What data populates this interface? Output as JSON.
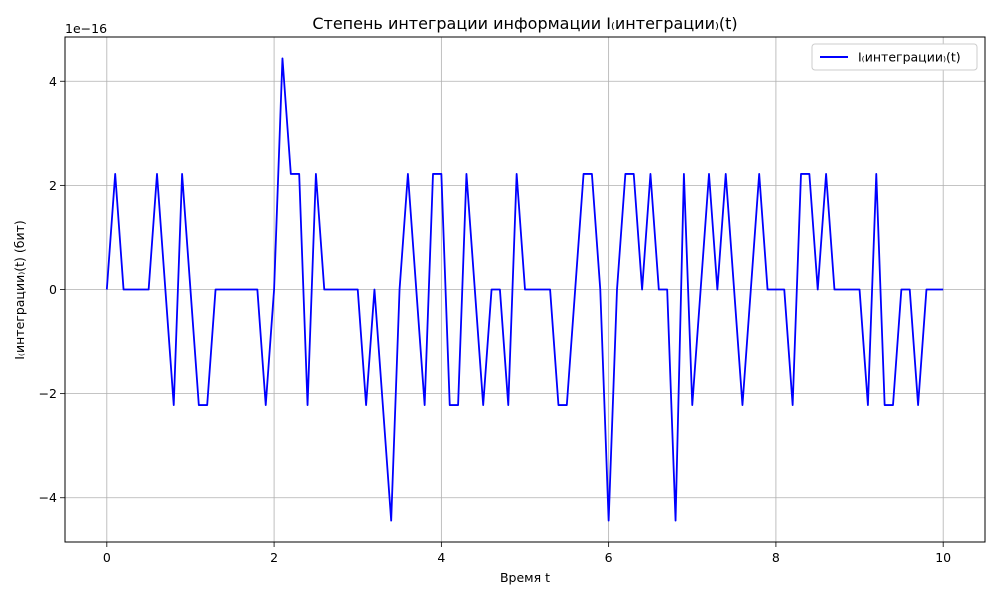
{
  "chart_data": {
    "type": "line",
    "title": "Степень интеграции информации I₍интеграции₎(t)",
    "xlabel": "Время t",
    "ylabel": "I₍интеграции₎(t) (бит)",
    "y_scale_label": "1e−16",
    "xlim": [
      -0.5,
      10.5
    ],
    "ylim": [
      -4.85,
      4.85
    ],
    "x_ticks": [
      0,
      2,
      4,
      6,
      8,
      10
    ],
    "y_ticks": [
      -4,
      -2,
      0,
      2,
      4
    ],
    "x_tick_labels": [
      "0",
      "2",
      "4",
      "6",
      "8",
      "10"
    ],
    "y_tick_labels": [
      "−4",
      "−2",
      "0",
      "2",
      "4"
    ],
    "grid": true,
    "legend_position": "top-right",
    "series": [
      {
        "name": "I₍интеграции₎(t)",
        "color": "#0000ff",
        "x": [
          0.0,
          0.1,
          0.2,
          0.3,
          0.4,
          0.5,
          0.6,
          0.7,
          0.8,
          0.9,
          1.0,
          1.1,
          1.2,
          1.3,
          1.4,
          1.5,
          1.6,
          1.7,
          1.8,
          1.9,
          2.0,
          2.1,
          2.2,
          2.3,
          2.4,
          2.5,
          2.6,
          2.7,
          2.8,
          2.9,
          3.0,
          3.1,
          3.2,
          3.3,
          3.4,
          3.5,
          3.6,
          3.7,
          3.8,
          3.9,
          4.0,
          4.1,
          4.2,
          4.3,
          4.4,
          4.5,
          4.6,
          4.7,
          4.8,
          4.9,
          5.0,
          5.1,
          5.2,
          5.3,
          5.4,
          5.5,
          5.6,
          5.7,
          5.8,
          5.9,
          6.0,
          6.1,
          6.2,
          6.3,
          6.4,
          6.5,
          6.6,
          6.7,
          6.8,
          6.9,
          7.0,
          7.1,
          7.2,
          7.3,
          7.4,
          7.5,
          7.6,
          7.7,
          7.8,
          7.9,
          8.0,
          8.1,
          8.2,
          8.3,
          8.4,
          8.5,
          8.6,
          8.7,
          8.8,
          8.9,
          9.0,
          9.1,
          9.2,
          9.3,
          9.4,
          9.5,
          9.6,
          9.7,
          9.8,
          9.9,
          10.0
        ],
        "y": [
          0,
          2.22,
          0,
          0,
          0,
          0,
          2.22,
          0,
          -2.22,
          2.22,
          0,
          -2.22,
          -2.22,
          0,
          0,
          0,
          0,
          0,
          0,
          -2.22,
          0,
          4.44,
          2.22,
          2.22,
          -2.22,
          2.22,
          0,
          0,
          0,
          0,
          0,
          -2.22,
          0,
          -2.22,
          -4.44,
          0,
          2.22,
          0,
          -2.22,
          2.22,
          2.22,
          -2.22,
          -2.22,
          2.22,
          0,
          -2.22,
          0,
          0,
          -2.22,
          2.22,
          0,
          0,
          0,
          0,
          -2.22,
          -2.22,
          0,
          2.22,
          2.22,
          0,
          -4.44,
          0,
          2.22,
          2.22,
          0,
          2.22,
          0,
          0,
          -4.44,
          2.22,
          -2.22,
          0,
          2.22,
          0,
          2.22,
          0,
          -2.22,
          0,
          2.22,
          0,
          0,
          0,
          -2.22,
          2.22,
          2.22,
          0,
          2.22,
          0,
          0,
          0,
          0,
          -2.22,
          2.22,
          -2.22,
          -2.22,
          0,
          0,
          -2.22,
          0,
          0,
          0
        ]
      }
    ]
  }
}
